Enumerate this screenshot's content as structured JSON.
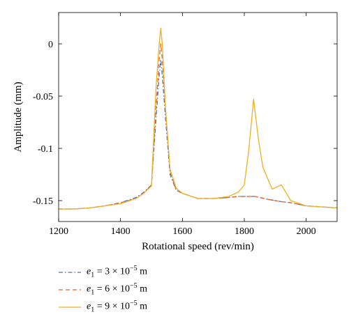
{
  "chart_data": {
    "type": "line",
    "xlabel": "Rotational speed (rev/min)",
    "ylabel": "Amplitude (mm)",
    "xlim": [
      1200,
      2100
    ],
    "ylim": [
      -0.17,
      0.03
    ],
    "xticks": [
      1200,
      1400,
      1600,
      1800,
      2000
    ],
    "yticks": [
      0,
      -0.05,
      -0.1,
      -0.15
    ],
    "ytick_labels": [
      "0",
      "-0.05",
      "-0.1",
      "-0.15"
    ],
    "grid": false,
    "legend_position": "below-left",
    "series": [
      {
        "name": "e1 = 3 × 10^-5 m",
        "legend": {
          "var": "e",
          "sub": "1",
          "pre": " = 3 × 10",
          "sup": "−5",
          "post": " m"
        },
        "color": "#4472C4",
        "dash": "6,3,1.5,3",
        "x": [
          1200,
          1250,
          1300,
          1350,
          1400,
          1450,
          1475,
          1500,
          1515,
          1525,
          1530,
          1535,
          1545,
          1560,
          1580,
          1600,
          1650,
          1700,
          1750,
          1780,
          1800,
          1825,
          1830,
          1835,
          1850,
          1880,
          1900,
          1920,
          1950,
          2000,
          2050,
          2100
        ],
        "y": [
          -0.158,
          -0.158,
          -0.157,
          -0.155,
          -0.152,
          -0.147,
          -0.142,
          -0.135,
          -0.07,
          -0.03,
          -0.015,
          -0.03,
          -0.07,
          -0.125,
          -0.14,
          -0.143,
          -0.148,
          -0.148,
          -0.147,
          -0.146,
          -0.146,
          -0.146,
          -0.146,
          -0.146,
          -0.147,
          -0.149,
          -0.15,
          -0.151,
          -0.152,
          -0.155,
          -0.156,
          -0.157
        ]
      },
      {
        "name": "e1 = 6 × 10^-5 m",
        "legend": {
          "var": "e",
          "sub": "1",
          "pre": " = 6 × 10",
          "sup": "−5",
          "post": " m"
        },
        "color": "#E8632A",
        "dash": "6,4",
        "x": [
          1200,
          1250,
          1300,
          1350,
          1400,
          1450,
          1475,
          1500,
          1515,
          1525,
          1530,
          1535,
          1545,
          1560,
          1580,
          1600,
          1650,
          1700,
          1750,
          1780,
          1800,
          1825,
          1830,
          1835,
          1850,
          1880,
          1900,
          1920,
          1950,
          2000,
          2050,
          2100
        ],
        "y": [
          -0.158,
          -0.158,
          -0.157,
          -0.155,
          -0.152,
          -0.148,
          -0.143,
          -0.135,
          -0.06,
          -0.015,
          0.0,
          -0.015,
          -0.06,
          -0.122,
          -0.14,
          -0.143,
          -0.148,
          -0.148,
          -0.147,
          -0.146,
          -0.146,
          -0.146,
          -0.146,
          -0.146,
          -0.147,
          -0.149,
          -0.15,
          -0.151,
          -0.152,
          -0.155,
          -0.156,
          -0.157
        ]
      },
      {
        "name": "e1 = 9 × 10^-5 m",
        "legend": {
          "var": "e",
          "sub": "1",
          "pre": " = 9 × 10",
          "sup": "−5",
          "post": " m"
        },
        "color": "#EDB120",
        "dash": "",
        "x": [
          1200,
          1250,
          1300,
          1350,
          1400,
          1450,
          1475,
          1500,
          1515,
          1525,
          1530,
          1535,
          1545,
          1560,
          1580,
          1600,
          1650,
          1700,
          1750,
          1780,
          1800,
          1815,
          1830,
          1845,
          1860,
          1890,
          1920,
          1950,
          2000,
          2050,
          2100
        ],
        "y": [
          -0.158,
          -0.158,
          -0.157,
          -0.155,
          -0.153,
          -0.148,
          -0.143,
          -0.136,
          -0.04,
          0.0,
          0.015,
          0.0,
          -0.06,
          -0.12,
          -0.138,
          -0.143,
          -0.148,
          -0.148,
          -0.146,
          -0.142,
          -0.135,
          -0.1,
          -0.053,
          -0.09,
          -0.118,
          -0.139,
          -0.135,
          -0.15,
          -0.155,
          -0.156,
          -0.157
        ]
      }
    ]
  }
}
